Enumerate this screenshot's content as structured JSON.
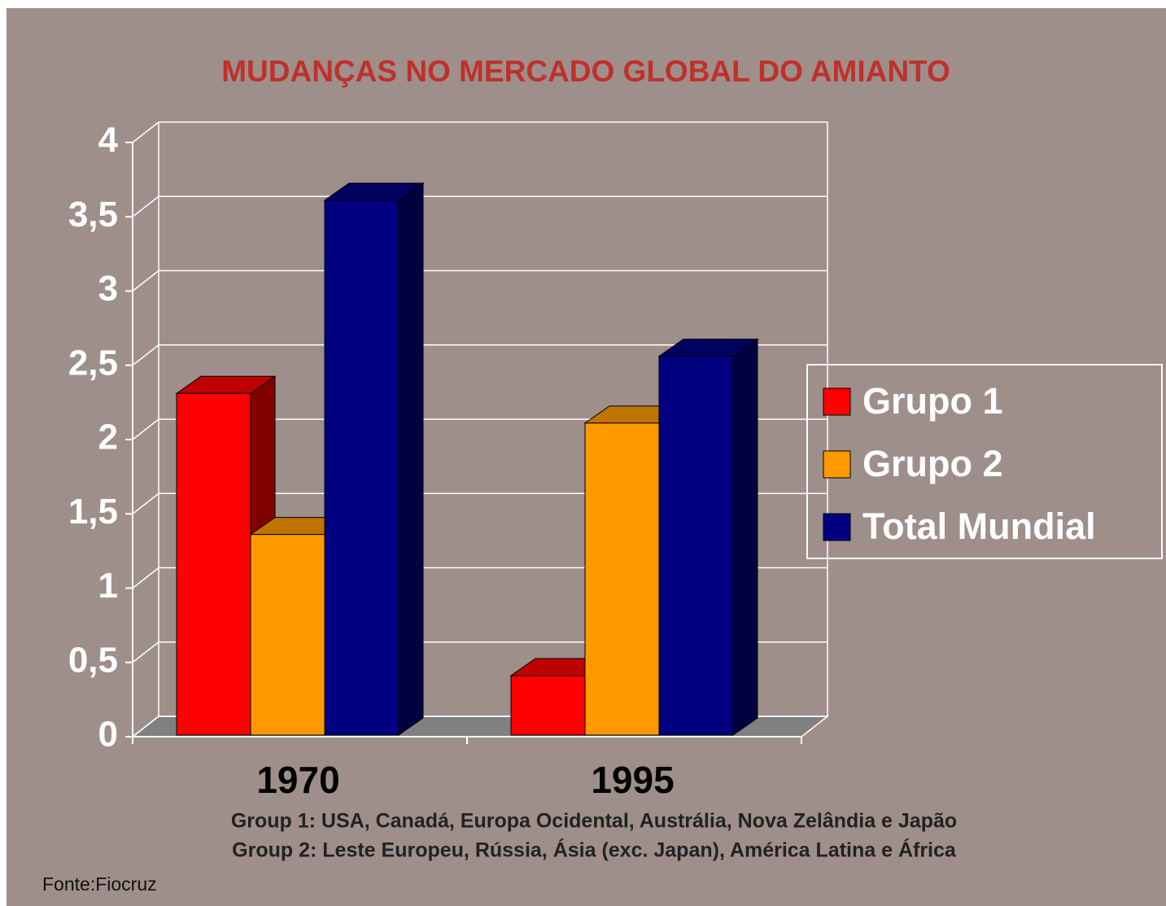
{
  "chart_data": {
    "type": "bar3d",
    "title": "MUDANÇAS NO MERCADO GLOBAL DO AMIANTO",
    "categories": [
      "1970",
      "1995"
    ],
    "series": [
      {
        "name": "Grupo 1",
        "color": "#ff0000",
        "values": [
          2.3,
          0.4
        ]
      },
      {
        "name": "Grupo 2",
        "color": "#ff9900",
        "values": [
          1.35,
          2.1
        ]
      },
      {
        "name": "Total Mundial",
        "color": "#000080",
        "values": [
          3.6,
          2.55
        ]
      }
    ],
    "ylim": [
      0,
      4
    ],
    "yticks": [
      0,
      {
        "value": 0.5,
        "label": "0,5"
      },
      1,
      {
        "value": 1.5,
        "label": "1,5"
      },
      2,
      {
        "value": 2.5,
        "label": "2,5"
      },
      3,
      {
        "value": 3.5,
        "label": "3,5"
      },
      4
    ],
    "grid": true,
    "legend": "right",
    "notes": [
      "Group 1: USA, Canadá, Europa Ocidental, Austrália, Nova Zelândia e Japão",
      "Group 2: Leste Europeu, Rússia, Ásia (exc. Japan), América Latina e África"
    ],
    "source": "Fonte:Fiocruz"
  }
}
